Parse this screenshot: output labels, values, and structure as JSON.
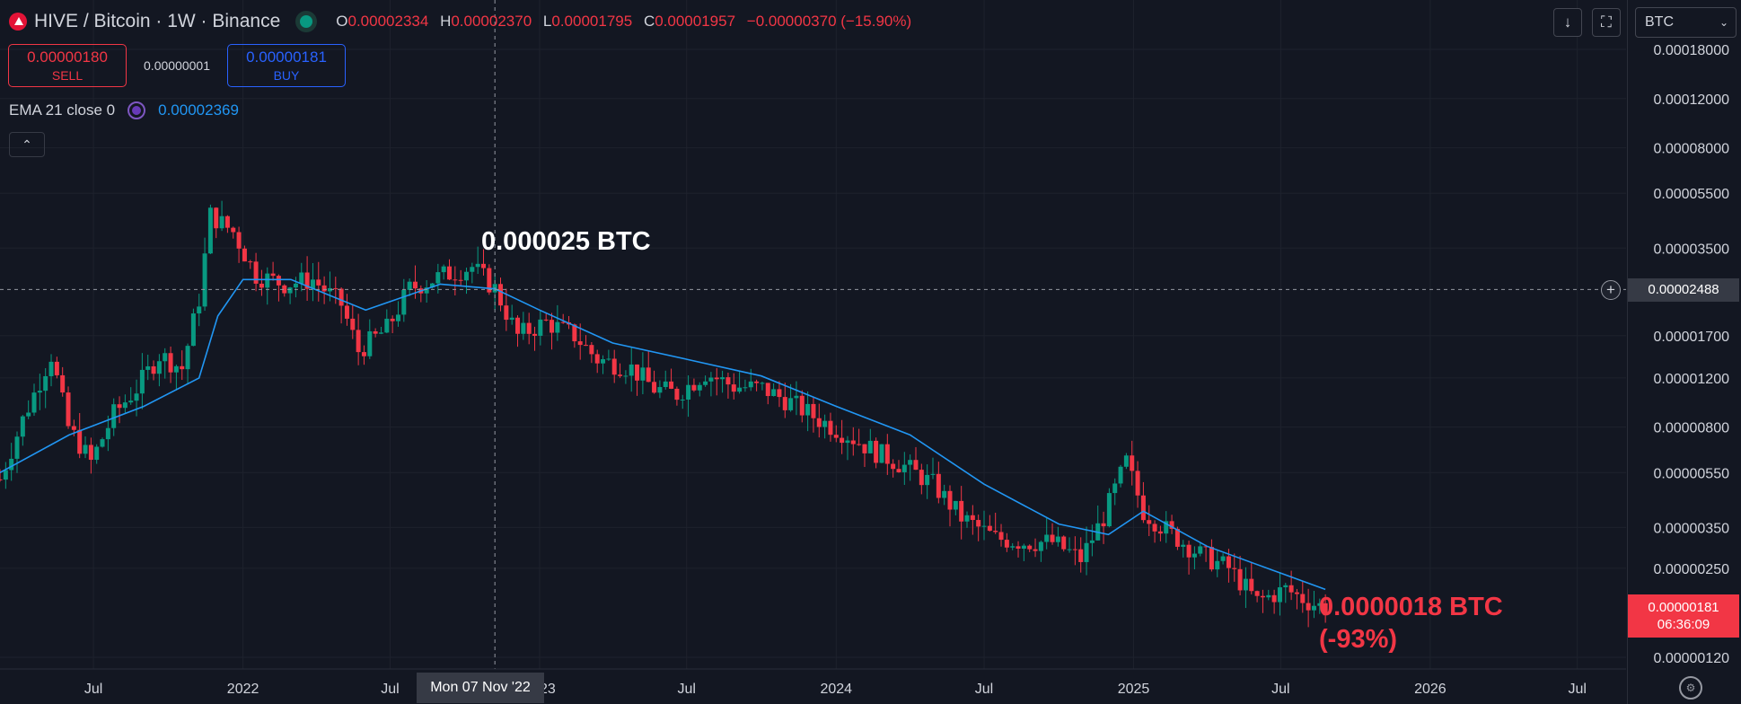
{
  "header": {
    "symbol_title": "HIVE / Bitcoin · 1W · Binance",
    "ohlc": {
      "o_label": "O",
      "o_value": "0.00002334",
      "h_label": "H",
      "h_value": "0.00002370",
      "l_label": "L",
      "l_value": "0.00001795",
      "c_label": "C",
      "c_value": "0.00001957",
      "change": "−0.00000370 (−15.90%)"
    }
  },
  "trade": {
    "sell_price": "0.00000180",
    "sell_label": "SELL",
    "spread": "0.00000001",
    "buy_price": "0.00000181",
    "buy_label": "BUY"
  },
  "indicator": {
    "label": "EMA 21 close 0",
    "value": "0.00002369"
  },
  "toolbar": {
    "symbol_select": "BTC",
    "download_icon": "↓",
    "fullscreen_icon": "⛶",
    "collapse_icon": "⌃"
  },
  "annotations": {
    "top": "0.000025 BTC",
    "bottom_line1": "0.0000018 BTC",
    "bottom_line2": "(-93%)"
  },
  "price_axis": {
    "current_price": "0.00000181",
    "countdown": "06:36:09",
    "crosshair_price": "0.00002488"
  },
  "time_axis": {
    "crosshair_date": "Mon 07 Nov '22"
  },
  "colors": {
    "up": "#089981",
    "down": "#f23645",
    "ema": "#2196f3",
    "background": "#131722"
  },
  "chart_data": {
    "type": "candlestick",
    "title": "HIVE / Bitcoin · 1W · Binance",
    "y_scale": "log",
    "y_unit": "BTC",
    "ylim": [
      1.2e-06,
      0.00018
    ],
    "y_ticks": [
      "0.00018000",
      "0.00012000",
      "0.00008000",
      "0.00005500",
      "0.00003500",
      "0.00001700",
      "0.00001200",
      "0.00000800",
      "0.00000550",
      "0.00000350",
      "0.00000250",
      "0.00000120"
    ],
    "x_ticks": [
      "Jul",
      "2022",
      "Jul",
      "2023",
      "Jul",
      "2024",
      "Jul",
      "2025",
      "Jul",
      "2026",
      "Jul"
    ],
    "x_tick_dates": [
      "2021-07-01",
      "2022-01-01",
      "2022-07-01",
      "2023-01-01",
      "2023-07-01",
      "2024-01-01",
      "2024-07-01",
      "2025-01-01",
      "2025-07-01",
      "2026-01-01",
      "2026-07-01"
    ],
    "x_range": [
      "2021-03-08",
      "2026-08-30"
    ],
    "grid": true,
    "ohlc_legend": "O 0.00002334 H 0.00002370 L 0.00001795 C 0.00001957",
    "series_close": [
      {
        "date": "2021-03-08",
        "close": 5.2e-06
      },
      {
        "date": "2021-04-05",
        "close": 8.5e-06
      },
      {
        "date": "2021-05-10",
        "close": 1.45e-05
      },
      {
        "date": "2021-05-31",
        "close": 8e-06
      },
      {
        "date": "2021-06-28",
        "close": 6e-06
      },
      {
        "date": "2021-07-26",
        "close": 8.9e-06
      },
      {
        "date": "2021-08-23",
        "close": 1.1e-05
      },
      {
        "date": "2021-09-20",
        "close": 1.45e-05
      },
      {
        "date": "2021-10-18",
        "close": 1.3e-05
      },
      {
        "date": "2021-11-08",
        "close": 2.3e-05
      },
      {
        "date": "2021-11-22",
        "close": 4.6e-05
      },
      {
        "date": "2021-12-20",
        "close": 4e-05
      },
      {
        "date": "2022-01-17",
        "close": 2.8e-05
      },
      {
        "date": "2022-02-21",
        "close": 2.6e-05
      },
      {
        "date": "2022-03-28",
        "close": 2.7e-05
      },
      {
        "date": "2022-05-02",
        "close": 2.2e-05
      },
      {
        "date": "2022-05-23",
        "close": 1.5e-05
      },
      {
        "date": "2022-06-27",
        "close": 1.8e-05
      },
      {
        "date": "2022-07-25",
        "close": 2.5e-05
      },
      {
        "date": "2022-09-05",
        "close": 2.8e-05
      },
      {
        "date": "2022-10-10",
        "close": 3e-05
      },
      {
        "date": "2022-11-07",
        "close": 2.5e-05
      },
      {
        "date": "2022-12-05",
        "close": 1.7e-05
      },
      {
        "date": "2023-01-09",
        "close": 1.9e-05
      },
      {
        "date": "2023-02-13",
        "close": 1.7e-05
      },
      {
        "date": "2023-03-13",
        "close": 1.4e-05
      },
      {
        "date": "2023-04-24",
        "close": 1.3e-05
      },
      {
        "date": "2023-05-22",
        "close": 1.1e-05
      },
      {
        "date": "2023-06-19",
        "close": 1.05e-05
      },
      {
        "date": "2023-07-24",
        "close": 1.25e-05
      },
      {
        "date": "2023-08-28",
        "close": 1.12e-05
      },
      {
        "date": "2023-10-02",
        "close": 1.1e-05
      },
      {
        "date": "2023-11-06",
        "close": 9.8e-06
      },
      {
        "date": "2023-12-11",
        "close": 8.5e-06
      },
      {
        "date": "2024-01-15",
        "close": 7.5e-06
      },
      {
        "date": "2024-02-19",
        "close": 6.5e-06
      },
      {
        "date": "2024-03-25",
        "close": 5.8e-06
      },
      {
        "date": "2024-04-29",
        "close": 5e-06
      },
      {
        "date": "2024-06-03",
        "close": 3.8e-06
      },
      {
        "date": "2024-07-15",
        "close": 3.2e-06
      },
      {
        "date": "2024-08-19",
        "close": 3.1e-06
      },
      {
        "date": "2024-09-23",
        "close": 3.1e-06
      },
      {
        "date": "2024-10-28",
        "close": 2.7e-06
      },
      {
        "date": "2024-11-25",
        "close": 3.8e-06
      },
      {
        "date": "2024-12-23",
        "close": 6e-06
      },
      {
        "date": "2025-01-13",
        "close": 4e-06
      },
      {
        "date": "2025-02-17",
        "close": 3.3e-06
      },
      {
        "date": "2025-03-24",
        "close": 2.8e-06
      },
      {
        "date": "2025-04-28",
        "close": 2.5e-06
      },
      {
        "date": "2025-06-02",
        "close": 1.9e-06
      },
      {
        "date": "2025-07-07",
        "close": 2.1e-06
      },
      {
        "date": "2025-08-04",
        "close": 1.9e-06
      },
      {
        "date": "2025-08-25",
        "close": 1.8e-06
      }
    ],
    "ema": {
      "name": "EMA 21 close 0",
      "points": [
        {
          "date": "2021-03-08",
          "value": 5.5e-06
        },
        {
          "date": "2021-06-01",
          "value": 7.5e-06
        },
        {
          "date": "2021-09-01",
          "value": 9.5e-06
        },
        {
          "date": "2021-11-08",
          "value": 1.2e-05
        },
        {
          "date": "2021-12-01",
          "value": 2e-05
        },
        {
          "date": "2022-01-01",
          "value": 2.7e-05
        },
        {
          "date": "2022-03-01",
          "value": 2.7e-05
        },
        {
          "date": "2022-06-01",
          "value": 2.1e-05
        },
        {
          "date": "2022-09-01",
          "value": 2.6e-05
        },
        {
          "date": "2022-11-07",
          "value": 2.5e-05
        },
        {
          "date": "2023-01-01",
          "value": 2.1e-05
        },
        {
          "date": "2023-04-01",
          "value": 1.6e-05
        },
        {
          "date": "2023-07-01",
          "value": 1.4e-05
        },
        {
          "date": "2023-10-01",
          "value": 1.22e-05
        },
        {
          "date": "2024-01-01",
          "value": 9.5e-06
        },
        {
          "date": "2024-04-01",
          "value": 7.5e-06
        },
        {
          "date": "2024-07-01",
          "value": 5e-06
        },
        {
          "date": "2024-10-01",
          "value": 3.6e-06
        },
        {
          "date": "2024-12-01",
          "value": 3.3e-06
        },
        {
          "date": "2025-01-13",
          "value": 4e-06
        },
        {
          "date": "2025-04-01",
          "value": 3e-06
        },
        {
          "date": "2025-07-01",
          "value": 2.4e-06
        },
        {
          "date": "2025-08-25",
          "value": 2.1e-06
        }
      ]
    },
    "crosshair": {
      "date": "2022-11-07",
      "price": 2.488e-05
    },
    "last_price": 1.81e-06
  }
}
